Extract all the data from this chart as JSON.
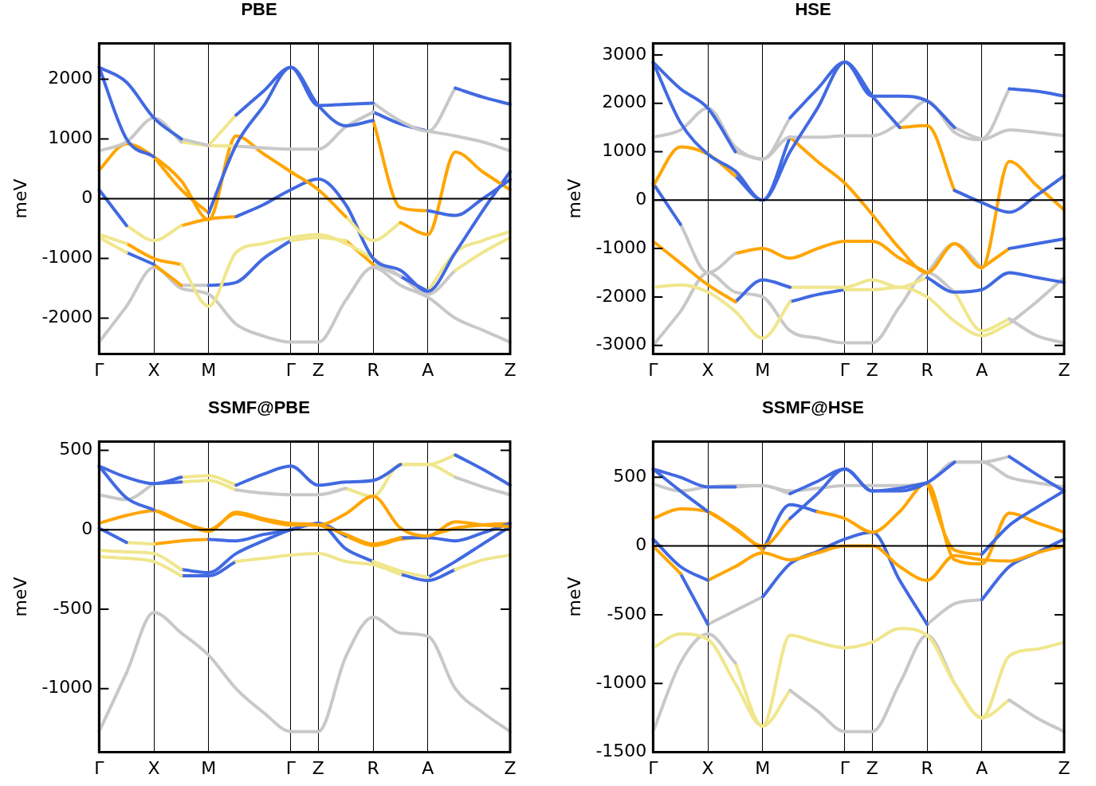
{
  "chart_data": [
    {
      "type": "line",
      "title": "PBE",
      "ylabel": "meV",
      "grid": "x",
      "legend": false,
      "categories": [
        "Γ",
        null,
        "X",
        null,
        "M",
        null,
        null,
        "Γ",
        "Z",
        null,
        "R",
        null,
        "A",
        null,
        null,
        "Z"
      ],
      "ylim": [
        -2600,
        2600
      ],
      "yticks": [
        -2000,
        -1000,
        0,
        1000,
        2000
      ],
      "ref_lines": [
        {
          "axis": "y",
          "value": 0,
          "color": "#000000"
        }
      ],
      "series": [
        {
          "color": "#4169e1",
          "values": [
            2200,
            1950,
            1350,
            1000,
            null,
            1400,
            1800,
            2200,
            1560,
            1580,
            1600,
            null,
            null,
            1850,
            1700,
            1580
          ]
        },
        {
          "color": "#c8c8c8",
          "values": [
            null,
            null,
            null,
            1000,
            890,
            null,
            null,
            null,
            null,
            null,
            1600,
            1300,
            1130,
            1850,
            null,
            null
          ]
        },
        {
          "color": "#f0e68c",
          "values": [
            null,
            null,
            null,
            null,
            890,
            1400,
            null,
            null,
            null,
            null,
            null,
            null,
            null,
            null,
            null,
            null
          ]
        },
        {
          "color": "#4169e1",
          "values": [
            2200,
            1000,
            700,
            null,
            -240,
            900,
            1550,
            2200,
            1560,
            1220,
            1310,
            null,
            -200,
            -280,
            0,
            320
          ]
        },
        {
          "color": "#ffa500",
          "values": [
            null,
            null,
            700,
            150,
            -240,
            null,
            null,
            null,
            null,
            null,
            1310,
            -150,
            -200,
            null,
            null,
            null
          ]
        },
        {
          "color": "#c8c8c8",
          "values": [
            800,
            950,
            1350,
            950,
            null,
            880,
            850,
            830,
            830,
            1200,
            1450,
            null,
            1130,
            1050,
            950,
            800
          ]
        },
        {
          "color": "#f0e68c",
          "values": [
            null,
            null,
            null,
            950,
            890,
            880,
            null,
            null,
            null,
            null,
            null,
            null,
            null,
            null,
            null,
            null
          ]
        },
        {
          "color": "#4169e1",
          "values": [
            null,
            null,
            null,
            null,
            null,
            null,
            null,
            null,
            null,
            null,
            1450,
            1250,
            1130,
            null,
            null,
            null
          ]
        },
        {
          "color": "#ffa500",
          "values": [
            480,
            920,
            700,
            300,
            -350,
            1050,
            750,
            450,
            150,
            -300,
            null,
            -400,
            -600,
            780,
            450,
            150
          ]
        },
        {
          "color": "#f0e68c",
          "values": [
            null,
            null,
            null,
            null,
            null,
            null,
            null,
            null,
            null,
            -300,
            -700,
            -400,
            null,
            null,
            null,
            null
          ]
        },
        {
          "color": "#4169e1",
          "values": [
            150,
            -450,
            null,
            null,
            null,
            -300,
            -100,
            150,
            330,
            -100,
            -1000,
            -1200,
            -1550,
            -900,
            -200,
            450
          ]
        },
        {
          "color": "#f0e68c",
          "values": [
            null,
            -450,
            -700,
            -450,
            null,
            null,
            null,
            null,
            null,
            null,
            null,
            null,
            null,
            null,
            null,
            null
          ]
        },
        {
          "color": "#ffa500",
          "values": [
            null,
            null,
            null,
            -450,
            -340,
            -300,
            null,
            null,
            null,
            null,
            null,
            null,
            null,
            null,
            null,
            null
          ]
        },
        {
          "color": "#f0e68c",
          "values": [
            -600,
            -750,
            null,
            -1100,
            -1800,
            -900,
            -750,
            -650,
            -600,
            -750,
            -1000,
            null,
            -1550,
            -900,
            -700,
            -550
          ]
        },
        {
          "color": "#ffa500",
          "values": [
            null,
            -750,
            -1000,
            -1100,
            null,
            null,
            null,
            null,
            null,
            null,
            null,
            null,
            null,
            null,
            null,
            null
          ]
        },
        {
          "color": "#c8c8c8",
          "values": [
            null,
            null,
            null,
            null,
            null,
            null,
            null,
            null,
            null,
            null,
            -1000,
            -1300,
            null,
            null,
            null,
            null
          ]
        },
        {
          "color": "#4169e1",
          "values": [
            null,
            null,
            null,
            null,
            null,
            null,
            null,
            null,
            null,
            null,
            null,
            -1300,
            -1550,
            null,
            null,
            null
          ]
        },
        {
          "color": "#f0e68c",
          "values": [
            -650,
            -900,
            null,
            null,
            null,
            null,
            null,
            -700,
            -650,
            -700,
            null,
            null,
            null,
            -1200,
            -900,
            -650
          ]
        },
        {
          "color": "#4169e1",
          "values": [
            null,
            -900,
            -1100,
            null,
            -1450,
            -1400,
            -1000,
            -700,
            null,
            null,
            null,
            null,
            null,
            null,
            null,
            null
          ]
        },
        {
          "color": "#ffa500",
          "values": [
            null,
            null,
            -1100,
            -1450,
            null,
            null,
            null,
            null,
            null,
            -700,
            -1100,
            null,
            null,
            null,
            null,
            null
          ]
        },
        {
          "color": "#c8c8c8",
          "values": [
            null,
            null,
            null,
            -1450,
            -1450,
            null,
            null,
            null,
            null,
            null,
            -1100,
            -1300,
            -1600,
            -1200,
            null,
            null
          ]
        },
        {
          "color": "#c8c8c8",
          "values": [
            -2400,
            -1800,
            -1150,
            -1500,
            -1600,
            -2100,
            -2300,
            -2400,
            -2400,
            -1700,
            -1150,
            -1450,
            -1650,
            -2000,
            -2200,
            -2400
          ]
        }
      ]
    },
    {
      "type": "line",
      "title": "HSE",
      "ylabel": "meV",
      "grid": "x",
      "legend": false,
      "categories": [
        "Γ",
        null,
        "X",
        null,
        "M",
        null,
        null,
        "Γ",
        "Z",
        null,
        "R",
        null,
        "A",
        null,
        null,
        "Z"
      ],
      "ylim": [
        -3180,
        3240
      ],
      "yticks": [
        -3000,
        -2000,
        -1000,
        0,
        1000,
        2000,
        3000
      ],
      "ref_lines": [
        {
          "axis": "y",
          "value": 0,
          "color": "#000000"
        }
      ],
      "series": [
        {
          "color": "#4169e1",
          "values": [
            2850,
            2300,
            1900,
            1000,
            null,
            1700,
            2300,
            2850,
            2150,
            2150,
            2050,
            1500,
            null,
            2300,
            2250,
            2150
          ]
        },
        {
          "color": "#c8c8c8",
          "values": [
            null,
            null,
            null,
            1000,
            850,
            1700,
            null,
            null,
            null,
            null,
            null,
            1500,
            1270,
            2300,
            null,
            null
          ]
        },
        {
          "color": "#4169e1",
          "values": [
            2850,
            1600,
            950,
            600,
            0,
            1000,
            1900,
            2850,
            2150,
            1500,
            null,
            200,
            -50,
            -250,
            100,
            500
          ]
        },
        {
          "color": "#ffa500",
          "values": [
            null,
            null,
            null,
            null,
            null,
            null,
            null,
            null,
            null,
            1500,
            1540,
            200,
            null,
            null,
            null,
            null
          ]
        },
        {
          "color": "#c8c8c8",
          "values": [
            1300,
            1450,
            1900,
            1100,
            850,
            1300,
            1300,
            1330,
            1330,
            1600,
            2050,
            1400,
            1250,
            1450,
            1400,
            1330
          ]
        },
        {
          "color": "#ffa500",
          "values": [
            300,
            1100,
            950,
            500,
            null,
            1300,
            800,
            350,
            -300,
            -1000,
            -1500,
            -900,
            -1400,
            800,
            300,
            -200
          ]
        },
        {
          "color": "#4169e1",
          "values": [
            null,
            null,
            null,
            500,
            0,
            1300,
            null,
            null,
            null,
            null,
            null,
            null,
            null,
            null,
            null,
            null
          ]
        },
        {
          "color": "#4169e1",
          "values": [
            350,
            -500,
            null,
            null,
            null,
            null,
            null,
            null,
            null,
            null,
            null,
            null,
            null,
            -1000,
            -900,
            -800
          ]
        },
        {
          "color": "#c8c8c8",
          "values": [
            null,
            -500,
            -1500,
            -1100,
            null,
            null,
            null,
            null,
            null,
            null,
            -1500,
            -900,
            -1400,
            null,
            null,
            null
          ]
        },
        {
          "color": "#ffa500",
          "values": [
            null,
            null,
            null,
            -1100,
            -1000,
            -1200,
            -1000,
            -850,
            -850,
            -1200,
            -1500,
            null,
            -1400,
            -1000,
            null,
            null
          ]
        },
        {
          "color": "#ffa500",
          "values": [
            -850,
            -1300,
            -1750,
            -2100,
            null,
            null,
            null,
            null,
            null,
            null,
            null,
            null,
            null,
            null,
            null,
            null
          ]
        },
        {
          "color": "#4169e1",
          "values": [
            null,
            null,
            null,
            -2100,
            -1650,
            -1800,
            null,
            null,
            null,
            null,
            -1600,
            -1900,
            -1850,
            -1500,
            -1600,
            -1700
          ]
        },
        {
          "color": "#f0e68c",
          "values": [
            null,
            null,
            null,
            null,
            null,
            -1800,
            -1800,
            -1800,
            -1650,
            -1800,
            -1600,
            null,
            null,
            null,
            null,
            null
          ]
        },
        {
          "color": "#f0e68c",
          "values": [
            -1800,
            -1750,
            -1900,
            -2300,
            -2850,
            -2100,
            null,
            -1850,
            -1850,
            -1800,
            -2000,
            -2500,
            -2800,
            -2550,
            null,
            null
          ]
        },
        {
          "color": "#4169e1",
          "values": [
            null,
            null,
            null,
            null,
            null,
            -2100,
            -1950,
            -1850,
            null,
            null,
            null,
            null,
            null,
            null,
            null,
            null
          ]
        },
        {
          "color": "#c8c8c8",
          "values": [
            null,
            null,
            null,
            null,
            null,
            null,
            null,
            null,
            null,
            null,
            null,
            null,
            null,
            -2550,
            -2100,
            -1600
          ]
        },
        {
          "color": "#c8c8c8",
          "values": [
            -3000,
            -2300,
            -1500,
            -1900,
            -2000,
            -2700,
            -2850,
            -2950,
            -2950,
            -2200,
            -1500,
            -1900,
            null,
            -2450,
            -2800,
            -2950
          ]
        },
        {
          "color": "#f0e68c",
          "values": [
            null,
            null,
            null,
            null,
            null,
            null,
            null,
            null,
            null,
            null,
            null,
            -1900,
            -2700,
            -2450,
            null,
            null
          ]
        }
      ]
    },
    {
      "type": "line",
      "title": "SSMF@PBE",
      "ylabel": "meV",
      "grid": "x",
      "legend": false,
      "categories": [
        "Γ",
        null,
        "X",
        null,
        "M",
        null,
        null,
        "Γ",
        "Z",
        null,
        "R",
        null,
        "A",
        null,
        null,
        "Z"
      ],
      "ylim": [
        -1400,
        555
      ],
      "yticks": [
        -1000,
        -500,
        0,
        500
      ],
      "ref_lines": [
        {
          "axis": "y",
          "value": 0,
          "color": "#000000"
        }
      ],
      "series": [
        {
          "color": "#4169e1",
          "values": [
            400,
            330,
            290,
            330,
            null,
            280,
            350,
            400,
            280,
            300,
            310,
            410,
            null,
            470,
            380,
            280
          ]
        },
        {
          "color": "#f0e68c",
          "values": [
            null,
            null,
            null,
            330,
            340,
            280,
            null,
            null,
            null,
            null,
            null,
            410,
            410,
            470,
            null,
            null
          ]
        },
        {
          "color": "#4169e1",
          "values": [
            400,
            200,
            125,
            null,
            null,
            null,
            null,
            null,
            null,
            null,
            null,
            null,
            null,
            null,
            null,
            null
          ]
        },
        {
          "color": "#ffa500",
          "values": [
            null,
            null,
            125,
            50,
            0,
            100,
            60,
            30,
            30,
            100,
            210,
            10,
            -40,
            50,
            30,
            20
          ]
        },
        {
          "color": "#c8c8c8",
          "values": [
            220,
            190,
            290,
            null,
            null,
            250,
            230,
            220,
            220,
            260,
            null,
            null,
            null,
            330,
            270,
            220
          ]
        },
        {
          "color": "#4169e1",
          "values": [
            null,
            null,
            290,
            300,
            null,
            null,
            null,
            null,
            null,
            null,
            null,
            null,
            null,
            null,
            null,
            null
          ]
        },
        {
          "color": "#f0e68c",
          "values": [
            null,
            null,
            null,
            300,
            310,
            250,
            null,
            null,
            null,
            260,
            210,
            410,
            410,
            330,
            null,
            null
          ]
        },
        {
          "color": "#ffa500",
          "values": [
            40,
            90,
            120,
            50,
            -10,
            110,
            70,
            40,
            30,
            -30,
            -90,
            -50,
            null,
            null,
            null,
            null
          ]
        },
        {
          "color": "#4169e1",
          "values": [
            null,
            null,
            null,
            null,
            null,
            null,
            null,
            null,
            null,
            null,
            null,
            -50,
            -50,
            -70,
            -20,
            40
          ]
        },
        {
          "color": "#4169e1",
          "values": [
            10,
            -80,
            null,
            null,
            -60,
            -70,
            -30,
            0,
            40,
            -40,
            null,
            null,
            null,
            null,
            null,
            null
          ]
        },
        {
          "color": "#f0e68c",
          "values": [
            null,
            -80,
            -90,
            null,
            null,
            null,
            null,
            null,
            null,
            null,
            null,
            null,
            null,
            null,
            null,
            null
          ]
        },
        {
          "color": "#ffa500",
          "values": [
            null,
            null,
            -90,
            -70,
            -60,
            null,
            null,
            null,
            null,
            -40,
            -100,
            -60,
            -40,
            10,
            30,
            40
          ]
        },
        {
          "color": "#f0e68c",
          "values": [
            -130,
            -140,
            -150,
            -250,
            null,
            null,
            null,
            null,
            null,
            null,
            -200,
            -260,
            -300,
            null,
            null,
            null
          ]
        },
        {
          "color": "#4169e1",
          "values": [
            null,
            null,
            null,
            -250,
            -270,
            -150,
            -70,
            0,
            40,
            -120,
            -200,
            null,
            -300,
            -200,
            -90,
            20
          ]
        },
        {
          "color": "#f0e68c",
          "values": [
            -170,
            -180,
            -200,
            -290,
            null,
            -200,
            -180,
            -160,
            -150,
            -200,
            -220,
            -280,
            null,
            -250,
            -190,
            -160
          ]
        },
        {
          "color": "#4169e1",
          "values": [
            null,
            null,
            null,
            -290,
            -290,
            -200,
            null,
            null,
            null,
            null,
            null,
            -280,
            -320,
            -250,
            null,
            null
          ]
        },
        {
          "color": "#c8c8c8",
          "values": [
            -1270,
            -900,
            -520,
            -650,
            -790,
            -1000,
            -1150,
            -1270,
            -1270,
            -800,
            -550,
            -650,
            -670,
            -1000,
            -1150,
            -1270
          ]
        }
      ]
    },
    {
      "type": "line",
      "title": "SSMF@HSE",
      "ylabel": "meV",
      "grid": "x",
      "legend": false,
      "categories": [
        "Γ",
        null,
        "X",
        null,
        "M",
        null,
        null,
        "Γ",
        "Z",
        null,
        "R",
        null,
        "A",
        null,
        null,
        "Z"
      ],
      "ylim": [
        -1500,
        760
      ],
      "yticks": [
        -1500,
        -1000,
        -500,
        0,
        500
      ],
      "ref_lines": [
        {
          "axis": "y",
          "value": 0,
          "color": "#000000"
        }
      ],
      "series": [
        {
          "color": "#4169e1",
          "values": [
            560,
            500,
            430,
            430,
            null,
            380,
            470,
            560,
            400,
            400,
            460,
            610,
            null,
            650,
            520,
            400
          ]
        },
        {
          "color": "#c8c8c8",
          "values": [
            null,
            null,
            null,
            430,
            440,
            380,
            null,
            null,
            null,
            null,
            null,
            610,
            610,
            650,
            null,
            null
          ]
        },
        {
          "color": "#4169e1",
          "values": [
            560,
            400,
            250,
            null,
            null,
            200,
            380,
            560,
            400,
            420,
            460,
            null,
            -60,
            150,
            280,
            400
          ]
        },
        {
          "color": "#ffa500",
          "values": [
            null,
            null,
            250,
            130,
            0,
            200,
            null,
            null,
            null,
            null,
            460,
            -30,
            -60,
            null,
            null,
            null
          ]
        },
        {
          "color": "#c8c8c8",
          "values": [
            450,
            400,
            430,
            440,
            440,
            400,
            420,
            440,
            440,
            440,
            460,
            610,
            610,
            500,
            460,
            430
          ]
        },
        {
          "color": "#ffa500",
          "values": [
            200,
            270,
            250,
            120,
            -30,
            null,
            250,
            200,
            100,
            250,
            460,
            -100,
            -130,
            240,
            170,
            100
          ]
        },
        {
          "color": "#4169e1",
          "values": [
            null,
            null,
            null,
            null,
            -30,
            300,
            250,
            null,
            null,
            null,
            null,
            null,
            null,
            null,
            null,
            null
          ]
        },
        {
          "color": "#4169e1",
          "values": [
            50,
            -150,
            -250,
            null,
            null,
            null,
            null,
            null,
            null,
            null,
            null,
            null,
            null,
            null,
            null,
            null
          ]
        },
        {
          "color": "#ffa500",
          "values": [
            null,
            null,
            -250,
            -150,
            -50,
            -100,
            -50,
            0,
            0,
            -150,
            -250,
            -70,
            -100,
            -110,
            -50,
            0
          ]
        },
        {
          "color": "#ffa500",
          "values": [
            0,
            -200,
            null,
            null,
            null,
            null,
            null,
            null,
            null,
            null,
            null,
            null,
            null,
            null,
            null,
            null
          ]
        },
        {
          "color": "#4169e1",
          "values": [
            null,
            -200,
            -570,
            null,
            -370,
            -130,
            -40,
            50,
            100,
            -250,
            -570,
            null,
            -390,
            -150,
            -50,
            50
          ]
        },
        {
          "color": "#c8c8c8",
          "values": [
            null,
            null,
            -570,
            -470,
            -370,
            null,
            null,
            null,
            null,
            null,
            -570,
            -420,
            -390,
            null,
            null,
            null
          ]
        },
        {
          "color": "#f0e68c",
          "values": [
            -740,
            -640,
            -680,
            -1000,
            -1310,
            -650,
            -700,
            -740,
            -700,
            -600,
            -650,
            -1000,
            -1250,
            -800,
            -750,
            -700
          ]
        },
        {
          "color": "#c8c8c8",
          "values": [
            -1350,
            -850,
            -640,
            -850,
            null,
            -1050,
            -1200,
            -1350,
            -1350,
            -1000,
            -650,
            -1000,
            null,
            -1120,
            -1250,
            -1350
          ]
        },
        {
          "color": "#f0e68c",
          "values": [
            null,
            null,
            null,
            -850,
            -1310,
            -1050,
            null,
            null,
            null,
            null,
            null,
            -1000,
            -1250,
            -1120,
            null,
            null
          ]
        }
      ]
    }
  ]
}
